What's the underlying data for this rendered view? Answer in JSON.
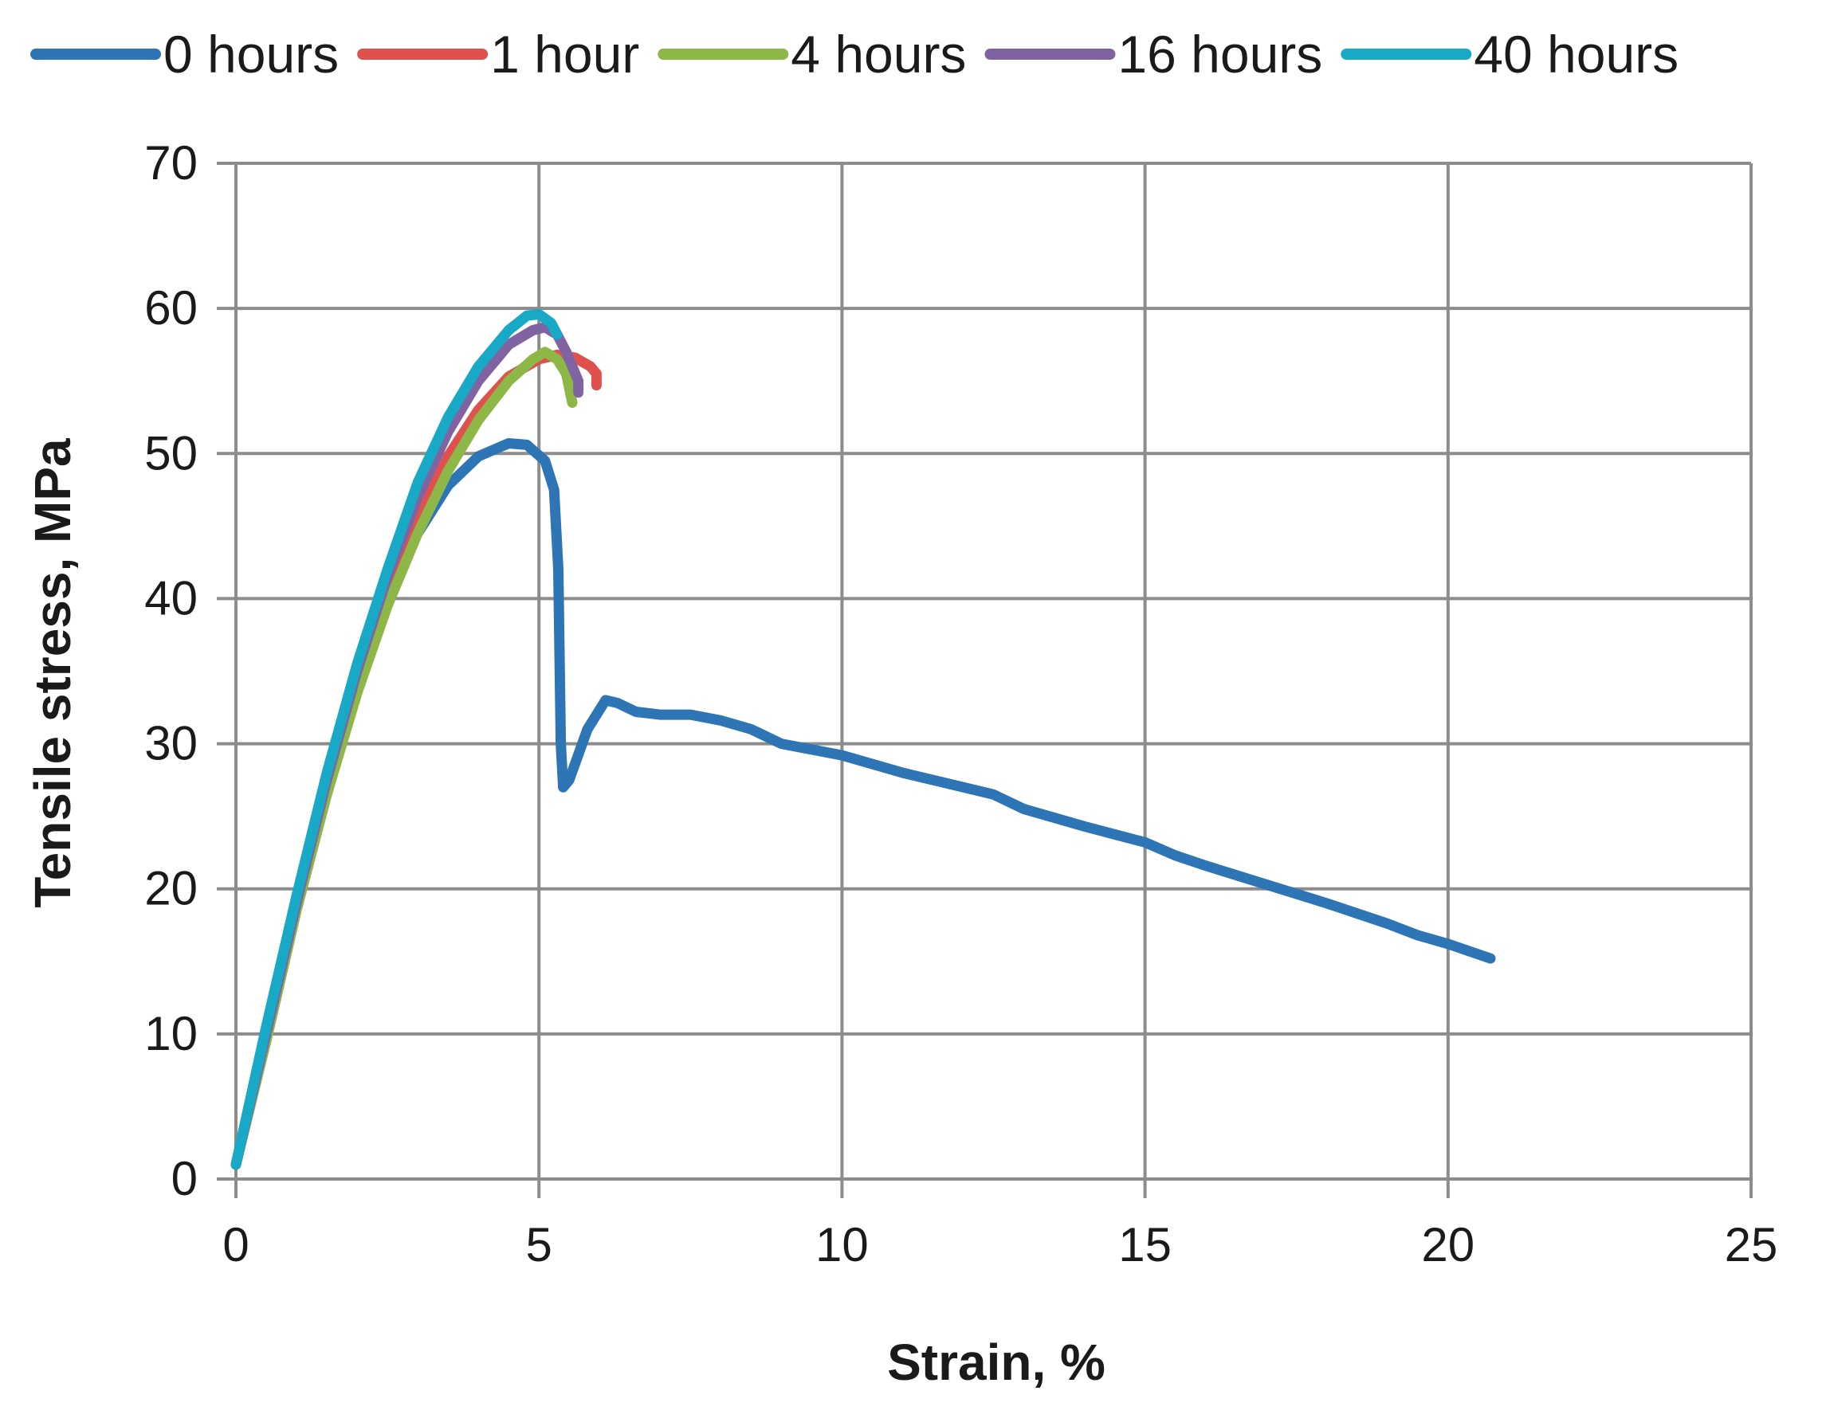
{
  "chart_data": {
    "type": "line",
    "title": "",
    "xlabel": "Strain, %",
    "ylabel": "Tensile stress, MPa",
    "xlim": [
      0,
      25
    ],
    "ylim": [
      0,
      70
    ],
    "xticks": [
      0,
      5,
      10,
      15,
      20,
      25
    ],
    "yticks": [
      0,
      10,
      20,
      30,
      40,
      50,
      60,
      70
    ],
    "grid": true,
    "legend_position": "top",
    "series": [
      {
        "name": "0 hours",
        "color": "#2E75B6",
        "x": [
          0,
          0.5,
          1,
          1.5,
          2,
          2.5,
          3,
          3.5,
          4,
          4.5,
          4.8,
          5.1,
          5.25,
          5.32,
          5.36,
          5.4,
          5.5,
          5.8,
          6.1,
          6.3,
          6.6,
          7,
          7.5,
          8,
          8.5,
          9,
          10,
          11,
          12,
          12.5,
          13,
          14,
          15,
          15.5,
          16,
          17,
          18,
          19,
          19.5,
          20,
          20.7
        ],
        "y": [
          1,
          10,
          19,
          27,
          34,
          40,
          44.5,
          47.8,
          49.8,
          50.7,
          50.6,
          49.5,
          47.5,
          42,
          30,
          27,
          27.5,
          31,
          33,
          32.8,
          32.2,
          32,
          32,
          31.6,
          31,
          30,
          29.2,
          28,
          27,
          26.5,
          25.5,
          24.3,
          23.2,
          22.3,
          21.6,
          20.3,
          19,
          17.6,
          16.8,
          16.2,
          15.2
        ]
      },
      {
        "name": "1 hour",
        "color": "#E0514D",
        "x": [
          0,
          0.5,
          1,
          1.5,
          2,
          2.5,
          3,
          3.5,
          4,
          4.5,
          5,
          5.3,
          5.6,
          5.85,
          5.95,
          5.95
        ],
        "y": [
          1,
          10,
          19,
          27,
          34,
          40.5,
          45.5,
          49.8,
          53,
          55.3,
          56.5,
          56.8,
          56.6,
          56,
          55.5,
          54.7
        ]
      },
      {
        "name": "4 hours",
        "color": "#8DB848",
        "x": [
          0,
          0.5,
          1,
          1.5,
          2,
          2.5,
          3,
          3.5,
          4,
          4.5,
          4.9,
          5.1,
          5.3,
          5.45,
          5.5,
          5.55
        ],
        "y": [
          1,
          9.5,
          18.5,
          26.5,
          33.5,
          39.5,
          44.5,
          48.8,
          52.3,
          55,
          56.5,
          57,
          56.5,
          55.5,
          54.5,
          53.5
        ]
      },
      {
        "name": "16 hours",
        "color": "#8064A2",
        "x": [
          0,
          0.5,
          1,
          1.5,
          2,
          2.5,
          3,
          3.5,
          4,
          4.5,
          4.9,
          5.1,
          5.3,
          5.45,
          5.55,
          5.65,
          5.65
        ],
        "y": [
          1,
          10,
          19,
          27.5,
          35,
          41.5,
          47,
          51.5,
          55,
          57.5,
          58.5,
          58.7,
          58.2,
          57,
          56,
          55,
          54.2
        ]
      },
      {
        "name": "40 hours",
        "color": "#17A9C6",
        "x": [
          0,
          0.5,
          1,
          1.5,
          2,
          2.5,
          3,
          3.5,
          4,
          4.5,
          4.8,
          5.0,
          5.2,
          5.3
        ],
        "y": [
          1,
          10.5,
          19.5,
          28,
          35.5,
          42,
          48,
          52.5,
          56,
          58.5,
          59.5,
          59.6,
          59,
          58.2
        ]
      }
    ]
  }
}
